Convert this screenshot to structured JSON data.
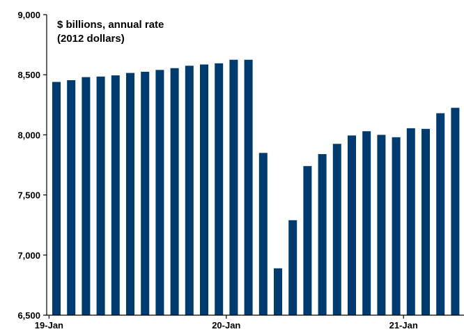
{
  "chart_data": {
    "type": "bar",
    "annotation": [
      "$ billions, annual rate",
      "(2012 dollars)"
    ],
    "xlabel": "",
    "ylabel": "",
    "ylim": [
      6500,
      9000
    ],
    "yticks": [
      6500,
      7000,
      7500,
      8000,
      8500,
      9000
    ],
    "ytick_labels": [
      "6,500",
      "7,000",
      "7,500",
      "8,000",
      "8,500",
      "9,000"
    ],
    "xtick_labels": [
      "19-Jan",
      "20-Jan",
      "21-Jan"
    ],
    "xtick_category_index": [
      0,
      12,
      24
    ],
    "grid": false,
    "bar_color": "#003B6F",
    "categories": [
      "Jan-19",
      "Feb-19",
      "Mar-19",
      "Apr-19",
      "May-19",
      "Jun-19",
      "Jul-19",
      "Aug-19",
      "Sep-19",
      "Oct-19",
      "Nov-19",
      "Dec-19",
      "Jan-20",
      "Feb-20",
      "Mar-20",
      "Apr-20",
      "May-20",
      "Jun-20",
      "Jul-20",
      "Aug-20",
      "Sep-20",
      "Oct-20",
      "Nov-20",
      "Dec-20",
      "Jan-21",
      "Feb-21",
      "Mar-21",
      "Apr-21"
    ],
    "values": [
      8440,
      8455,
      8480,
      8485,
      8495,
      8515,
      8525,
      8540,
      8555,
      8575,
      8585,
      8595,
      8625,
      8625,
      7850,
      6890,
      7290,
      7740,
      7840,
      7925,
      7995,
      8030,
      8000,
      7980,
      8055,
      8050,
      8180,
      8225
    ]
  }
}
